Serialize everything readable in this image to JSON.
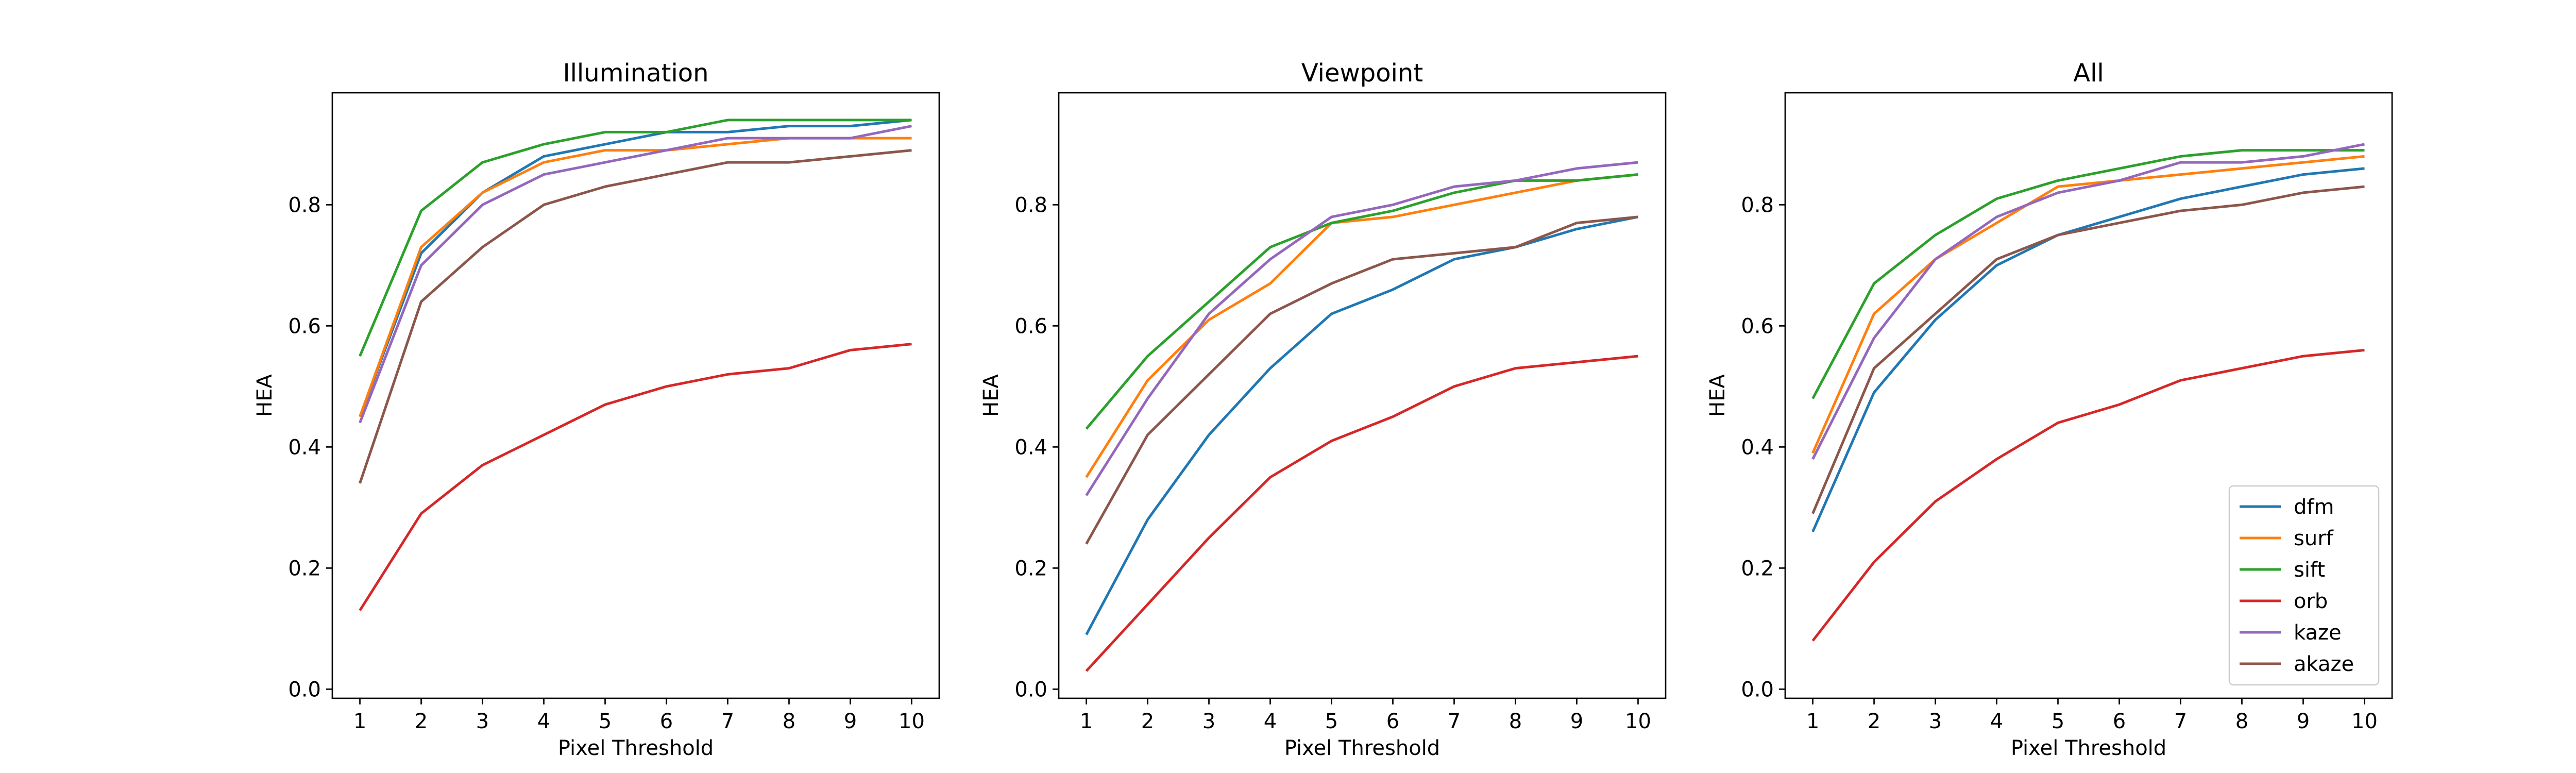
{
  "chart_data": [
    {
      "type": "line",
      "title": "Illumination",
      "xlabel": "Pixel Threshold",
      "ylabel": "HEA",
      "x": [
        1,
        2,
        3,
        4,
        5,
        6,
        7,
        8,
        9,
        10
      ],
      "xlim": [
        0.55,
        10.45
      ],
      "ylim": [
        -0.015,
        0.985
      ],
      "yticks": [
        0.0,
        0.2,
        0.4,
        0.6,
        0.8
      ],
      "ytick_labels": [
        "0.0",
        "0.2",
        "0.4",
        "0.6",
        "0.8"
      ],
      "grid": false,
      "series": [
        {
          "name": "dfm",
          "color": "#1f77b4",
          "values": [
            0.45,
            0.72,
            0.82,
            0.88,
            0.9,
            0.92,
            0.92,
            0.93,
            0.93,
            0.94
          ]
        },
        {
          "name": "surf",
          "color": "#ff7f0e",
          "values": [
            0.45,
            0.73,
            0.82,
            0.87,
            0.89,
            0.89,
            0.9,
            0.91,
            0.91,
            0.91
          ]
        },
        {
          "name": "sift",
          "color": "#2ca02c",
          "values": [
            0.55,
            0.79,
            0.87,
            0.9,
            0.92,
            0.92,
            0.94,
            0.94,
            0.94,
            0.94
          ]
        },
        {
          "name": "orb",
          "color": "#d62728",
          "values": [
            0.13,
            0.29,
            0.37,
            0.42,
            0.47,
            0.5,
            0.52,
            0.53,
            0.56,
            0.57
          ]
        },
        {
          "name": "kaze",
          "color": "#9467bd",
          "values": [
            0.44,
            0.7,
            0.8,
            0.85,
            0.87,
            0.89,
            0.91,
            0.91,
            0.91,
            0.93
          ]
        },
        {
          "name": "akaze",
          "color": "#8c564b",
          "values": [
            0.34,
            0.64,
            0.73,
            0.8,
            0.83,
            0.85,
            0.87,
            0.87,
            0.88,
            0.89
          ]
        }
      ]
    },
    {
      "type": "line",
      "title": "Viewpoint",
      "xlabel": "Pixel Threshold",
      "ylabel": "HEA",
      "x": [
        1,
        2,
        3,
        4,
        5,
        6,
        7,
        8,
        9,
        10
      ],
      "xlim": [
        0.55,
        10.45
      ],
      "ylim": [
        -0.015,
        0.985
      ],
      "yticks": [
        0.0,
        0.2,
        0.4,
        0.6,
        0.8
      ],
      "ytick_labels": [
        "0.0",
        "0.2",
        "0.4",
        "0.6",
        "0.8"
      ],
      "grid": false,
      "series": [
        {
          "name": "dfm",
          "color": "#1f77b4",
          "values": [
            0.09,
            0.28,
            0.42,
            0.53,
            0.62,
            0.66,
            0.71,
            0.73,
            0.76,
            0.78
          ]
        },
        {
          "name": "surf",
          "color": "#ff7f0e",
          "values": [
            0.35,
            0.51,
            0.61,
            0.67,
            0.77,
            0.78,
            0.8,
            0.82,
            0.84,
            0.85
          ]
        },
        {
          "name": "sift",
          "color": "#2ca02c",
          "values": [
            0.43,
            0.55,
            0.64,
            0.73,
            0.77,
            0.79,
            0.82,
            0.84,
            0.84,
            0.85
          ]
        },
        {
          "name": "orb",
          "color": "#d62728",
          "values": [
            0.03,
            0.14,
            0.25,
            0.35,
            0.41,
            0.45,
            0.5,
            0.53,
            0.54,
            0.55
          ]
        },
        {
          "name": "kaze",
          "color": "#9467bd",
          "values": [
            0.32,
            0.48,
            0.62,
            0.71,
            0.78,
            0.8,
            0.83,
            0.84,
            0.86,
            0.87
          ]
        },
        {
          "name": "akaze",
          "color": "#8c564b",
          "values": [
            0.24,
            0.42,
            0.52,
            0.62,
            0.67,
            0.71,
            0.72,
            0.73,
            0.77,
            0.78
          ]
        }
      ]
    },
    {
      "type": "line",
      "title": "All",
      "xlabel": "Pixel Threshold",
      "ylabel": "HEA",
      "x": [
        1,
        2,
        3,
        4,
        5,
        6,
        7,
        8,
        9,
        10
      ],
      "xlim": [
        0.55,
        10.45
      ],
      "ylim": [
        -0.015,
        0.985
      ],
      "yticks": [
        0.0,
        0.2,
        0.4,
        0.6,
        0.8
      ],
      "ytick_labels": [
        "0.0",
        "0.2",
        "0.4",
        "0.6",
        "0.8"
      ],
      "grid": false,
      "legend": "lower-right",
      "series": [
        {
          "name": "dfm",
          "color": "#1f77b4",
          "values": [
            0.26,
            0.49,
            0.61,
            0.7,
            0.75,
            0.78,
            0.81,
            0.83,
            0.85,
            0.86
          ]
        },
        {
          "name": "surf",
          "color": "#ff7f0e",
          "values": [
            0.39,
            0.62,
            0.71,
            0.77,
            0.83,
            0.84,
            0.85,
            0.86,
            0.87,
            0.88
          ]
        },
        {
          "name": "sift",
          "color": "#2ca02c",
          "values": [
            0.48,
            0.67,
            0.75,
            0.81,
            0.84,
            0.86,
            0.88,
            0.89,
            0.89,
            0.89
          ]
        },
        {
          "name": "orb",
          "color": "#d62728",
          "values": [
            0.08,
            0.21,
            0.31,
            0.38,
            0.44,
            0.47,
            0.51,
            0.53,
            0.55,
            0.56
          ]
        },
        {
          "name": "kaze",
          "color": "#9467bd",
          "values": [
            0.38,
            0.58,
            0.71,
            0.78,
            0.82,
            0.84,
            0.87,
            0.87,
            0.88,
            0.9
          ]
        },
        {
          "name": "akaze",
          "color": "#8c564b",
          "values": [
            0.29,
            0.53,
            0.62,
            0.71,
            0.75,
            0.77,
            0.79,
            0.8,
            0.82,
            0.83
          ]
        }
      ]
    }
  ]
}
